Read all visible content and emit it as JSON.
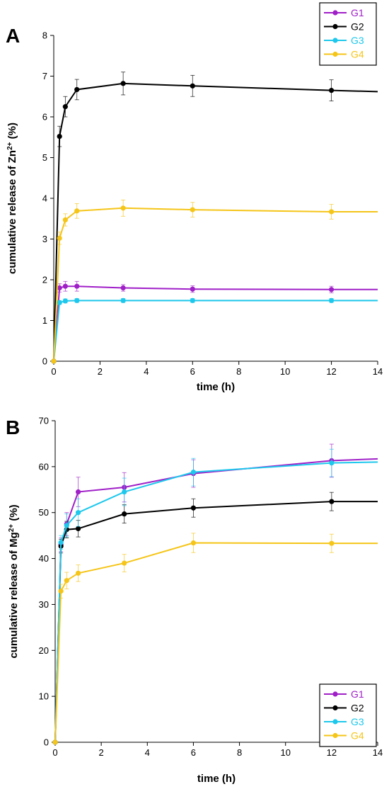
{
  "colors": {
    "G1": "#A020C8",
    "G2": "#000000",
    "G3": "#1EC8EC",
    "G4": "#F5C518"
  },
  "chart_data": [
    {
      "type": "line",
      "panel_label": "A",
      "xlabel": "time (h)",
      "ylabel_parts": [
        "cumulative release of Zn",
        "2+",
        " (%)"
      ],
      "xlim": [
        0,
        14
      ],
      "ylim": [
        0,
        8
      ],
      "xticks": [
        0,
        2,
        4,
        6,
        8,
        10,
        12,
        14
      ],
      "yticks": [
        0,
        1,
        2,
        3,
        4,
        5,
        6,
        7,
        8
      ],
      "legend_position": "top-right",
      "x": [
        0,
        0.25,
        0.5,
        1,
        3,
        6,
        12,
        14
      ],
      "series": [
        {
          "name": "G1",
          "color": "#A020C8",
          "values": [
            0,
            1.8,
            1.84,
            1.84,
            1.8,
            1.77,
            1.76,
            1.76
          ],
          "errors": [
            0,
            0.1,
            0.12,
            0.12,
            0.08,
            0.08,
            0.08,
            null
          ]
        },
        {
          "name": "G2",
          "color": "#000000",
          "values": [
            0,
            5.52,
            6.25,
            6.67,
            6.82,
            6.76,
            6.65,
            6.62
          ],
          "errors": [
            0,
            0.25,
            0.25,
            0.25,
            0.28,
            0.26,
            0.26,
            null
          ]
        },
        {
          "name": "G3",
          "color": "#1EC8EC",
          "values": [
            0,
            1.44,
            1.48,
            1.49,
            1.49,
            1.49,
            1.49,
            1.49
          ],
          "errors": [
            0,
            0.05,
            0.05,
            0.05,
            0.05,
            0.05,
            0.05,
            null
          ]
        },
        {
          "name": "G4",
          "color": "#F5C518",
          "values": [
            0,
            3.02,
            3.47,
            3.69,
            3.76,
            3.72,
            3.67,
            3.67
          ],
          "errors": [
            0,
            0.15,
            0.15,
            0.18,
            0.2,
            0.18,
            0.18,
            null
          ]
        }
      ]
    },
    {
      "type": "line",
      "panel_label": "B",
      "xlabel": "time (h)",
      "ylabel_parts": [
        "cumulative release of Mg",
        "2+",
        " (%)"
      ],
      "xlim": [
        0,
        14
      ],
      "ylim": [
        0,
        70
      ],
      "xticks": [
        0,
        2,
        4,
        6,
        8,
        10,
        12,
        14
      ],
      "yticks": [
        0,
        10,
        20,
        30,
        40,
        50,
        60,
        70
      ],
      "legend_position": "bottom-right",
      "x": [
        0,
        0.25,
        0.5,
        1,
        3,
        6,
        12,
        14
      ],
      "series": [
        {
          "name": "G1",
          "color": "#A020C8",
          "values": [
            0,
            43.0,
            47.5,
            54.5,
            55.5,
            58.5,
            61.3,
            61.7
          ],
          "errors": [
            0,
            1.5,
            2.5,
            3.2,
            3.2,
            3.0,
            3.6,
            null
          ]
        },
        {
          "name": "G2",
          "color": "#000000",
          "values": [
            0,
            42.7,
            46.3,
            46.5,
            49.7,
            51.0,
            52.4,
            52.4
          ],
          "errors": [
            0,
            1.5,
            1.8,
            1.8,
            2.0,
            2.0,
            2.0,
            null
          ]
        },
        {
          "name": "G3",
          "color": "#1EC8EC",
          "values": [
            0,
            43.5,
            47.2,
            50.0,
            54.5,
            58.8,
            60.8,
            61.0
          ],
          "errors": [
            0,
            1.5,
            2.5,
            3.0,
            3.0,
            3.0,
            3.0,
            null
          ]
        },
        {
          "name": "G4",
          "color": "#F5C518",
          "values": [
            0,
            32.9,
            35.2,
            36.8,
            39.0,
            43.4,
            43.3,
            43.3
          ],
          "errors": [
            0,
            1.5,
            1.8,
            1.8,
            1.9,
            2.1,
            2.0,
            null
          ]
        }
      ]
    }
  ]
}
